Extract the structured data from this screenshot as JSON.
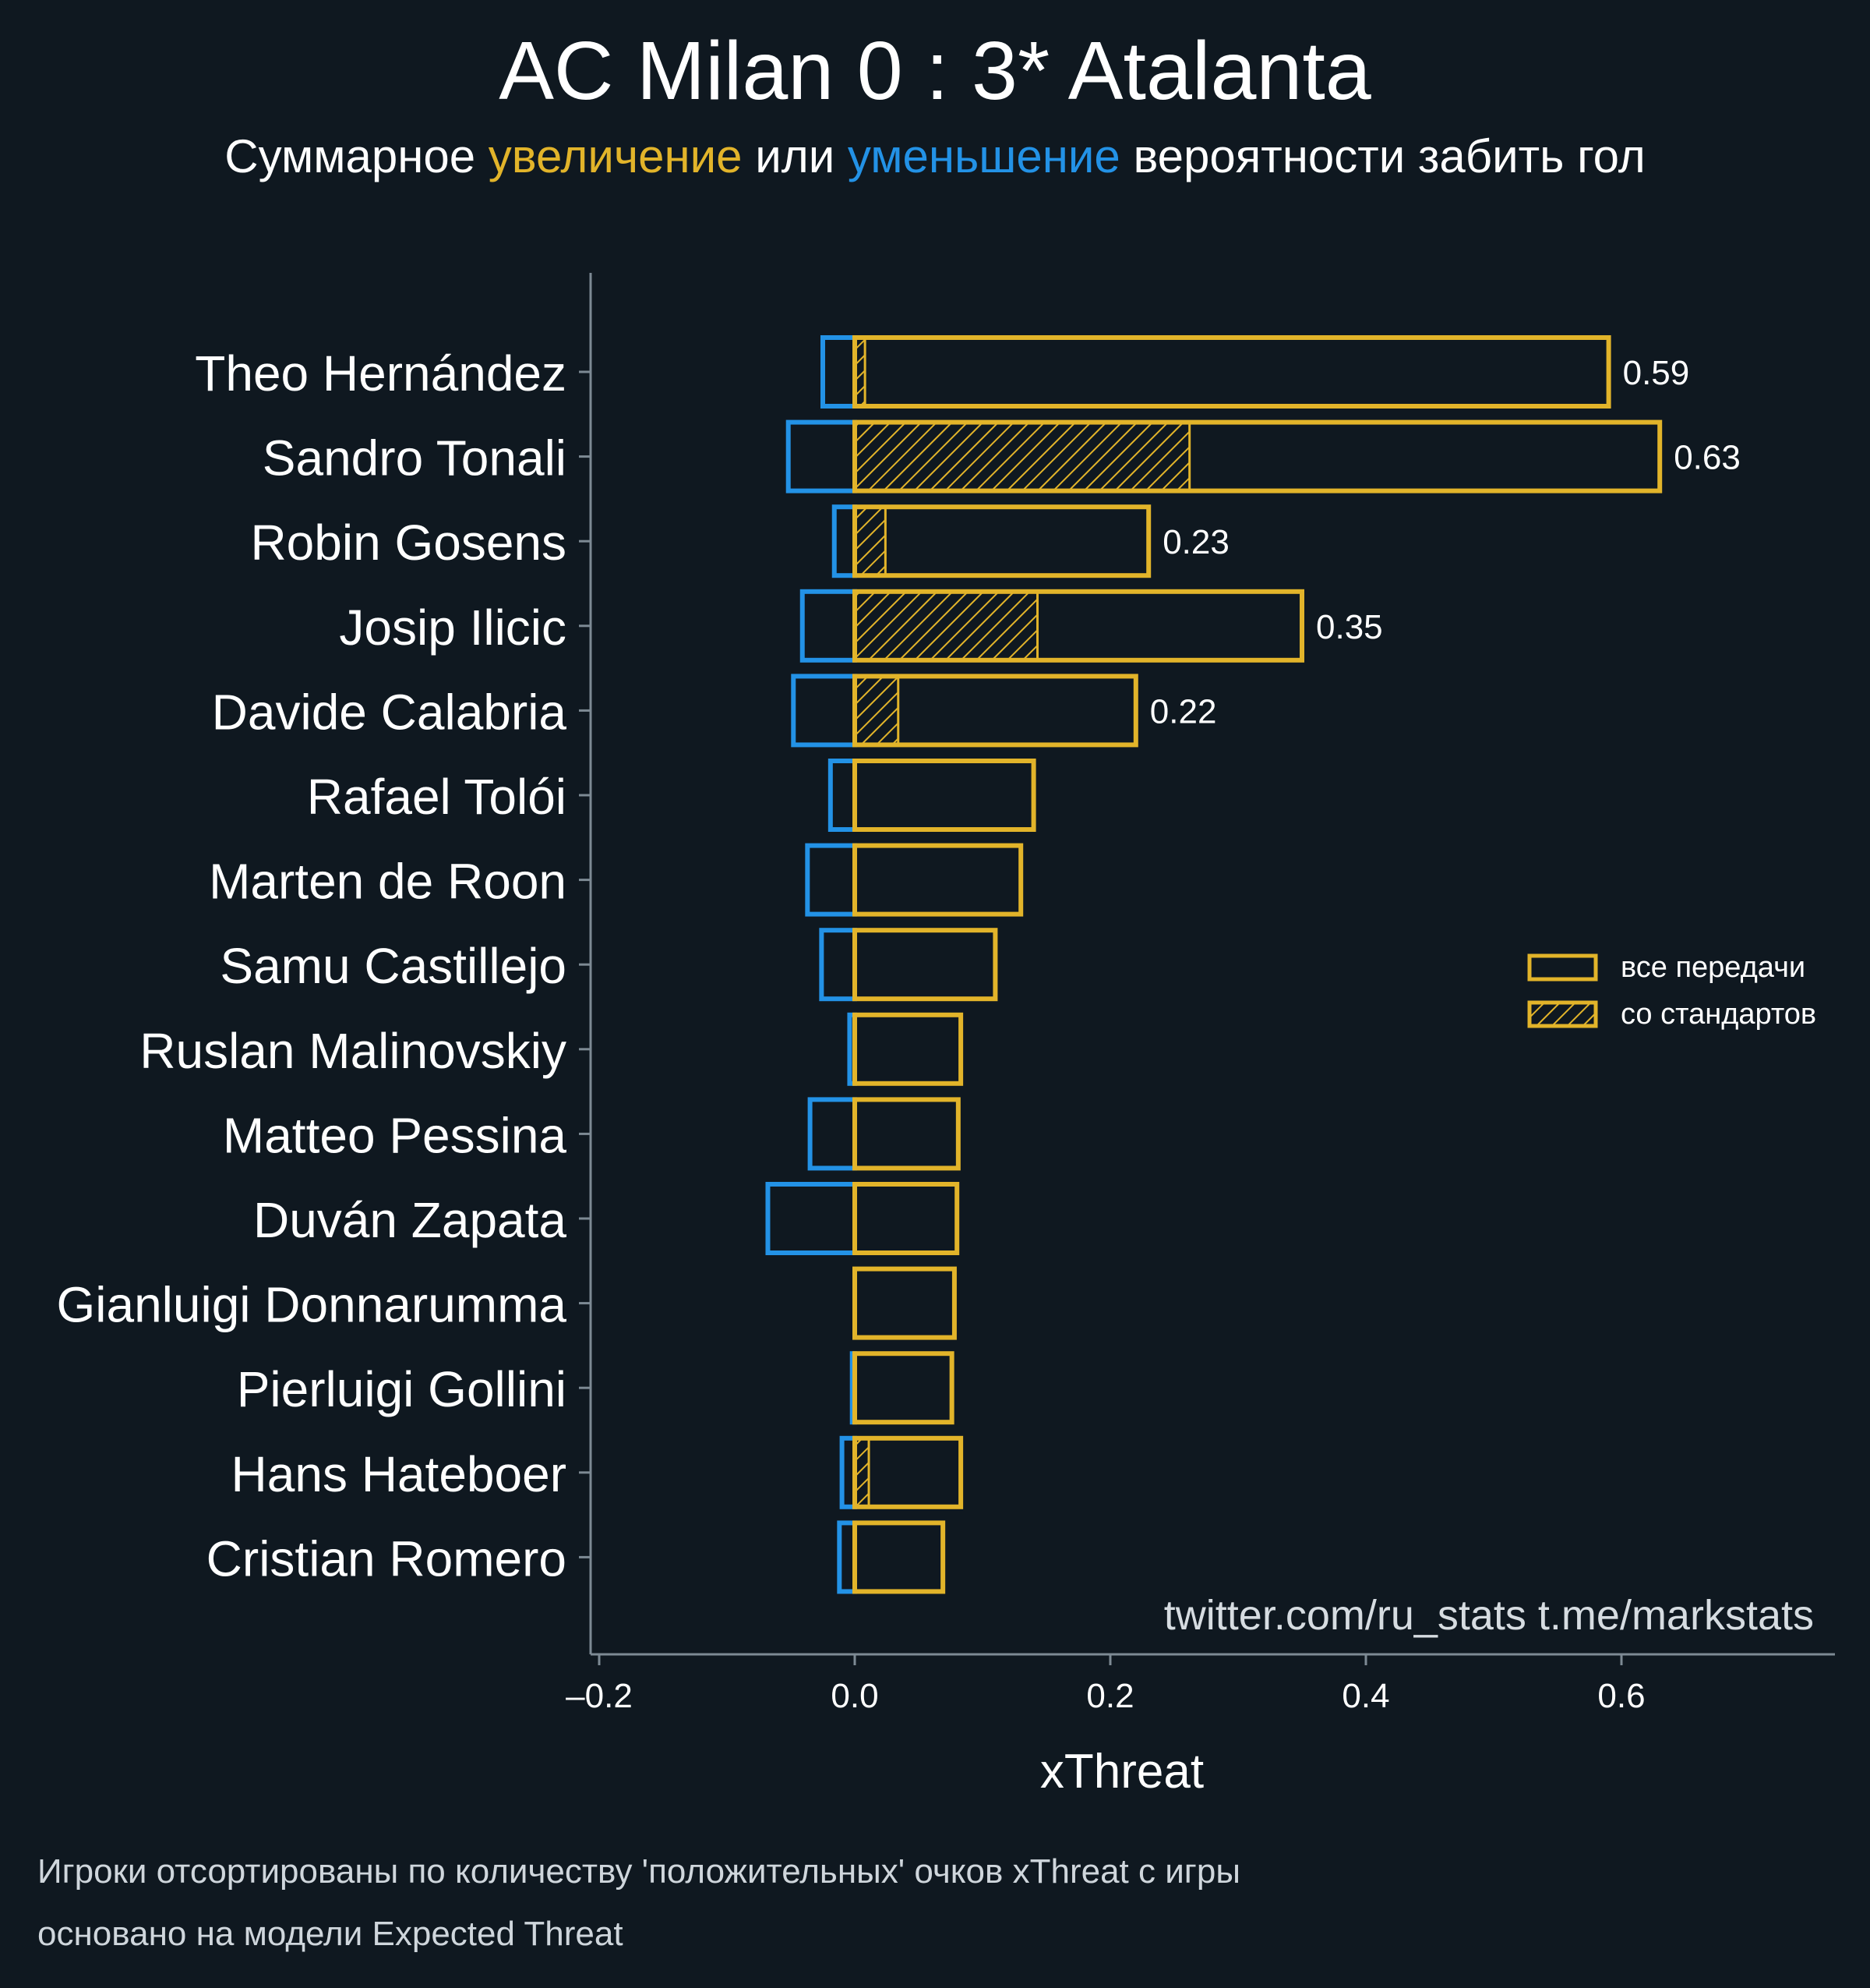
{
  "title": "AC Milan 0 : 3* Atalanta",
  "subtitle": {
    "prefix": "Суммарное",
    "increase_word": "увеличение",
    "middle": "или",
    "decrease_word": "уменьшение",
    "suffix": "вероятности забить гол"
  },
  "colors": {
    "background": "#0f1820",
    "positive": "#e2b42a",
    "negative": "#2392e6",
    "axis": "#7d8a94",
    "text": "#ffffff"
  },
  "watermark": "twitter.com/ru_stats  t.me/markstats",
  "captions": [
    "Игроки отсортированы по количеству 'положительных' очков xThreat с игры",
    "основано на модели Expected Threat"
  ],
  "chart_data": {
    "type": "bar",
    "orientation": "horizontal",
    "xlabel": "xThreat",
    "xlim": [
      -0.2,
      0.76
    ],
    "xticks": [
      -0.2,
      0.0,
      0.2,
      0.4,
      0.6
    ],
    "xtick_labels": [
      "–0.2",
      "0.0",
      "0.2",
      "0.4",
      "0.6"
    ],
    "legend": {
      "placement": "right",
      "entries": [
        {
          "label": "все передачи",
          "style": "outline"
        },
        {
          "label": "со стандартов",
          "style": "hatched"
        }
      ]
    },
    "categories": [
      "Theo Hernández",
      "Sandro Tonali",
      "Robin Gosens",
      "Josip Ilicic",
      "Davide Calabria",
      "Rafael Tolói",
      "Marten de Roon",
      "Samu Castillejo",
      "Ruslan Malinovskiy",
      "Matteo Pessina",
      "Duván Zapata",
      "Gianluigi Donnarumma",
      "Pierluigi Gollini",
      "Hans Hateboer",
      "Cristian Romero"
    ],
    "series": [
      {
        "name": "все передачи",
        "role": "positive",
        "values": [
          0.59,
          0.63,
          0.23,
          0.35,
          0.22,
          0.14,
          0.13,
          0.11,
          0.083,
          0.081,
          0.08,
          0.078,
          0.076,
          0.083,
          0.069
        ]
      },
      {
        "name": "со стандартов",
        "role": "positive_set_pieces",
        "values": [
          0.008,
          0.262,
          0.024,
          0.143,
          0.034,
          0,
          0,
          0,
          0,
          0,
          0,
          0,
          0,
          0.011,
          0
        ]
      },
      {
        "role": "negative",
        "values": [
          -0.025,
          -0.052,
          -0.016,
          -0.041,
          -0.048,
          -0.019,
          -0.037,
          -0.026,
          -0.004,
          -0.035,
          -0.068,
          0,
          -0.002,
          -0.01,
          -0.012
        ]
      }
    ],
    "data_labels": [
      "0.59",
      "0.63",
      "0.23",
      "0.35",
      "0.22",
      "",
      "",
      "",
      "",
      "",
      "",
      "",
      "",
      "",
      ""
    ]
  }
}
